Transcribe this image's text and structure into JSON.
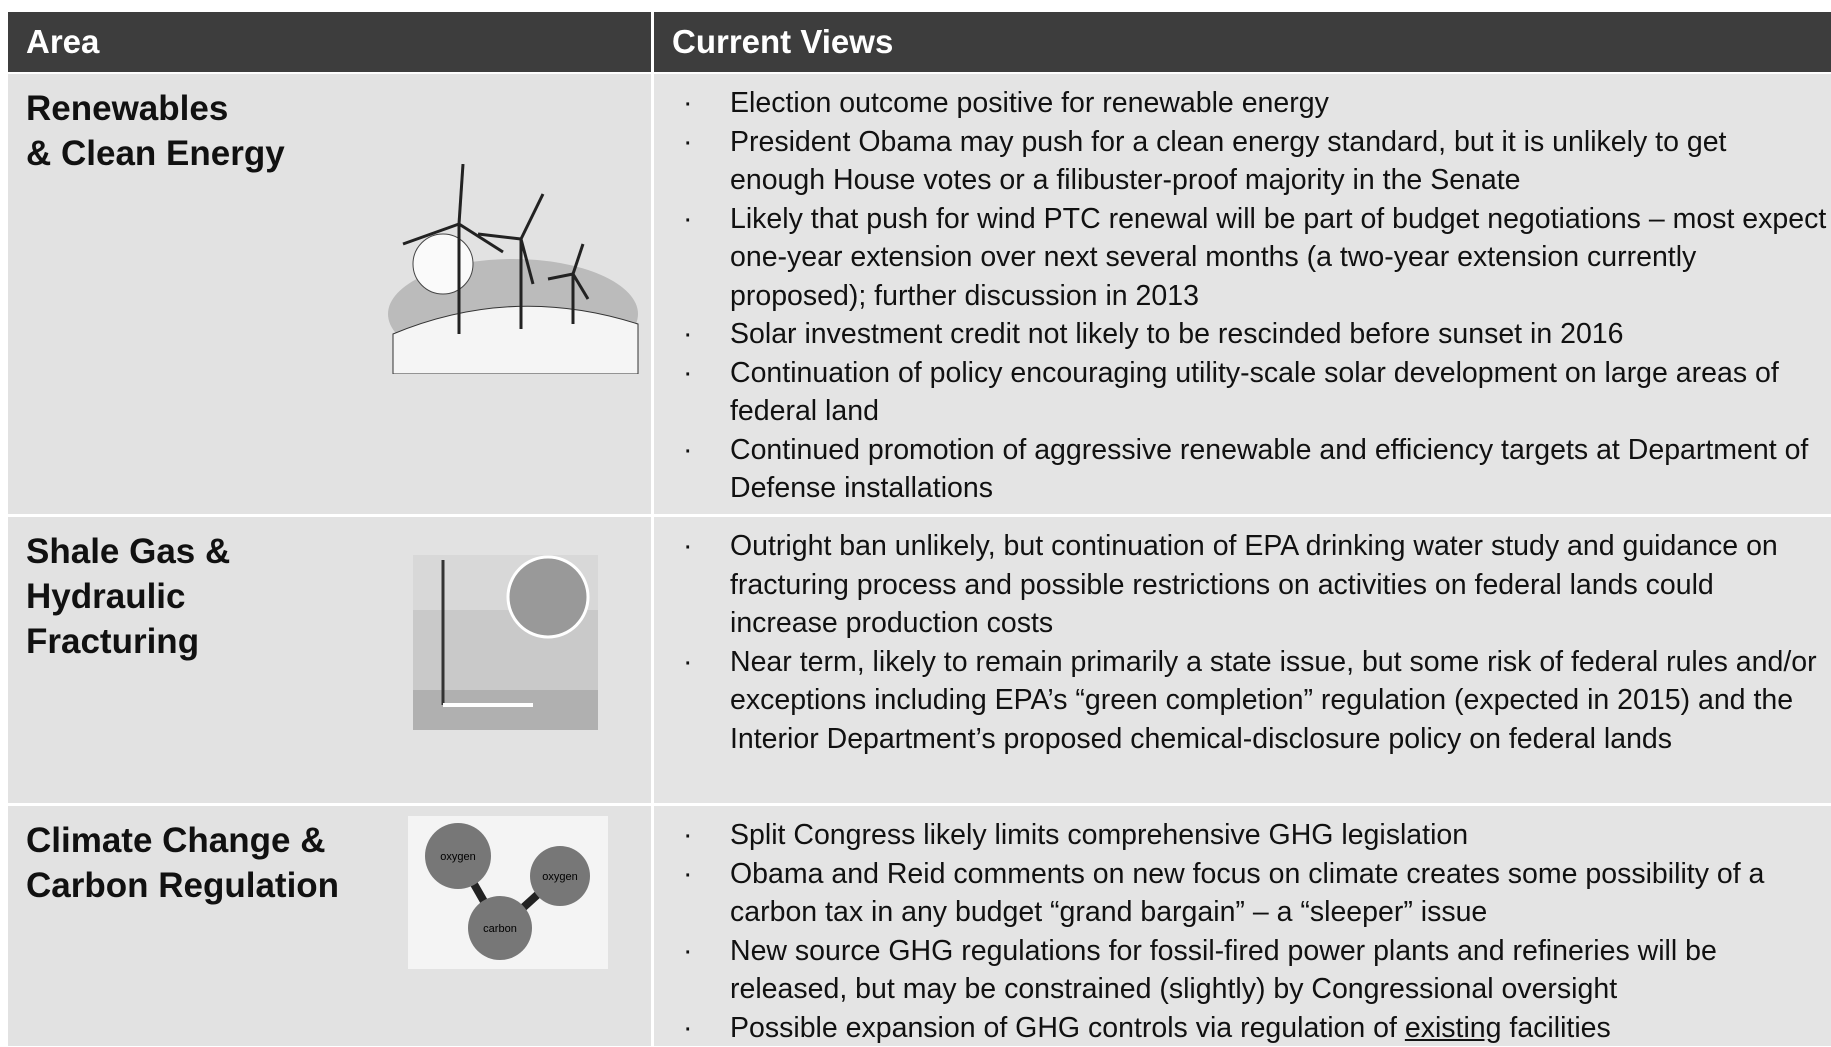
{
  "table": {
    "header": [
      "Area",
      "Current Views"
    ],
    "rows": [
      {
        "area": "Renewables\n& Clean Energy",
        "views": [
          "Election outcome positive for renewable energy",
          "President Obama may push for a clean energy standard, but it is unlikely to get enough House votes or a filibuster-proof majority in the Senate",
          "Likely that push for wind PTC renewal will be part of budget negotiations – most expect one-year extension over next several months (a two-year extension currently proposed); further discussion in 2013",
          "Solar investment credit not likely to be rescinded before sunset in 2016",
          "Continuation of policy encouraging utility-scale solar development on large areas of federal land",
          "Continued promotion of aggressive renewable and efficiency targets at Department of Defense installations"
        ]
      },
      {
        "area": "Shale Gas &\nHydraulic\nFracturing",
        "views": [
          "Outright ban unlikely, but continuation of EPA drinking water study and guidance on fracturing process and possible restrictions on activities on federal lands could increase production costs",
          "Near term, likely to remain primarily a state issue, but some risk of federal rules and/or exceptions including EPA’s “green completion” regulation (expected in 2015) and the Interior Department’s proposed chemical-disclosure policy on federal lands"
        ]
      },
      {
        "area": "Climate Change &\nCarbon Regulation",
        "image_labels": [
          "oxygen",
          "oxygen",
          "carbon"
        ],
        "views": [
          "Split Congress likely limits comprehensive GHG legislation",
          "Obama and Reid comments on new focus on climate creates some possibility of a carbon tax in any budget “grand bargain” – a “sleeper” issue",
          "New source GHG regulations for fossil-fired power plants and refineries will be released, but may be constrained (slightly) by Congressional oversight",
          [
            {
              "text": "Possible expansion of GHG controls via regulation of "
            },
            {
              "text": "existing",
              "underline": true
            },
            {
              "text": " facilities"
            }
          ]
        ]
      }
    ]
  }
}
